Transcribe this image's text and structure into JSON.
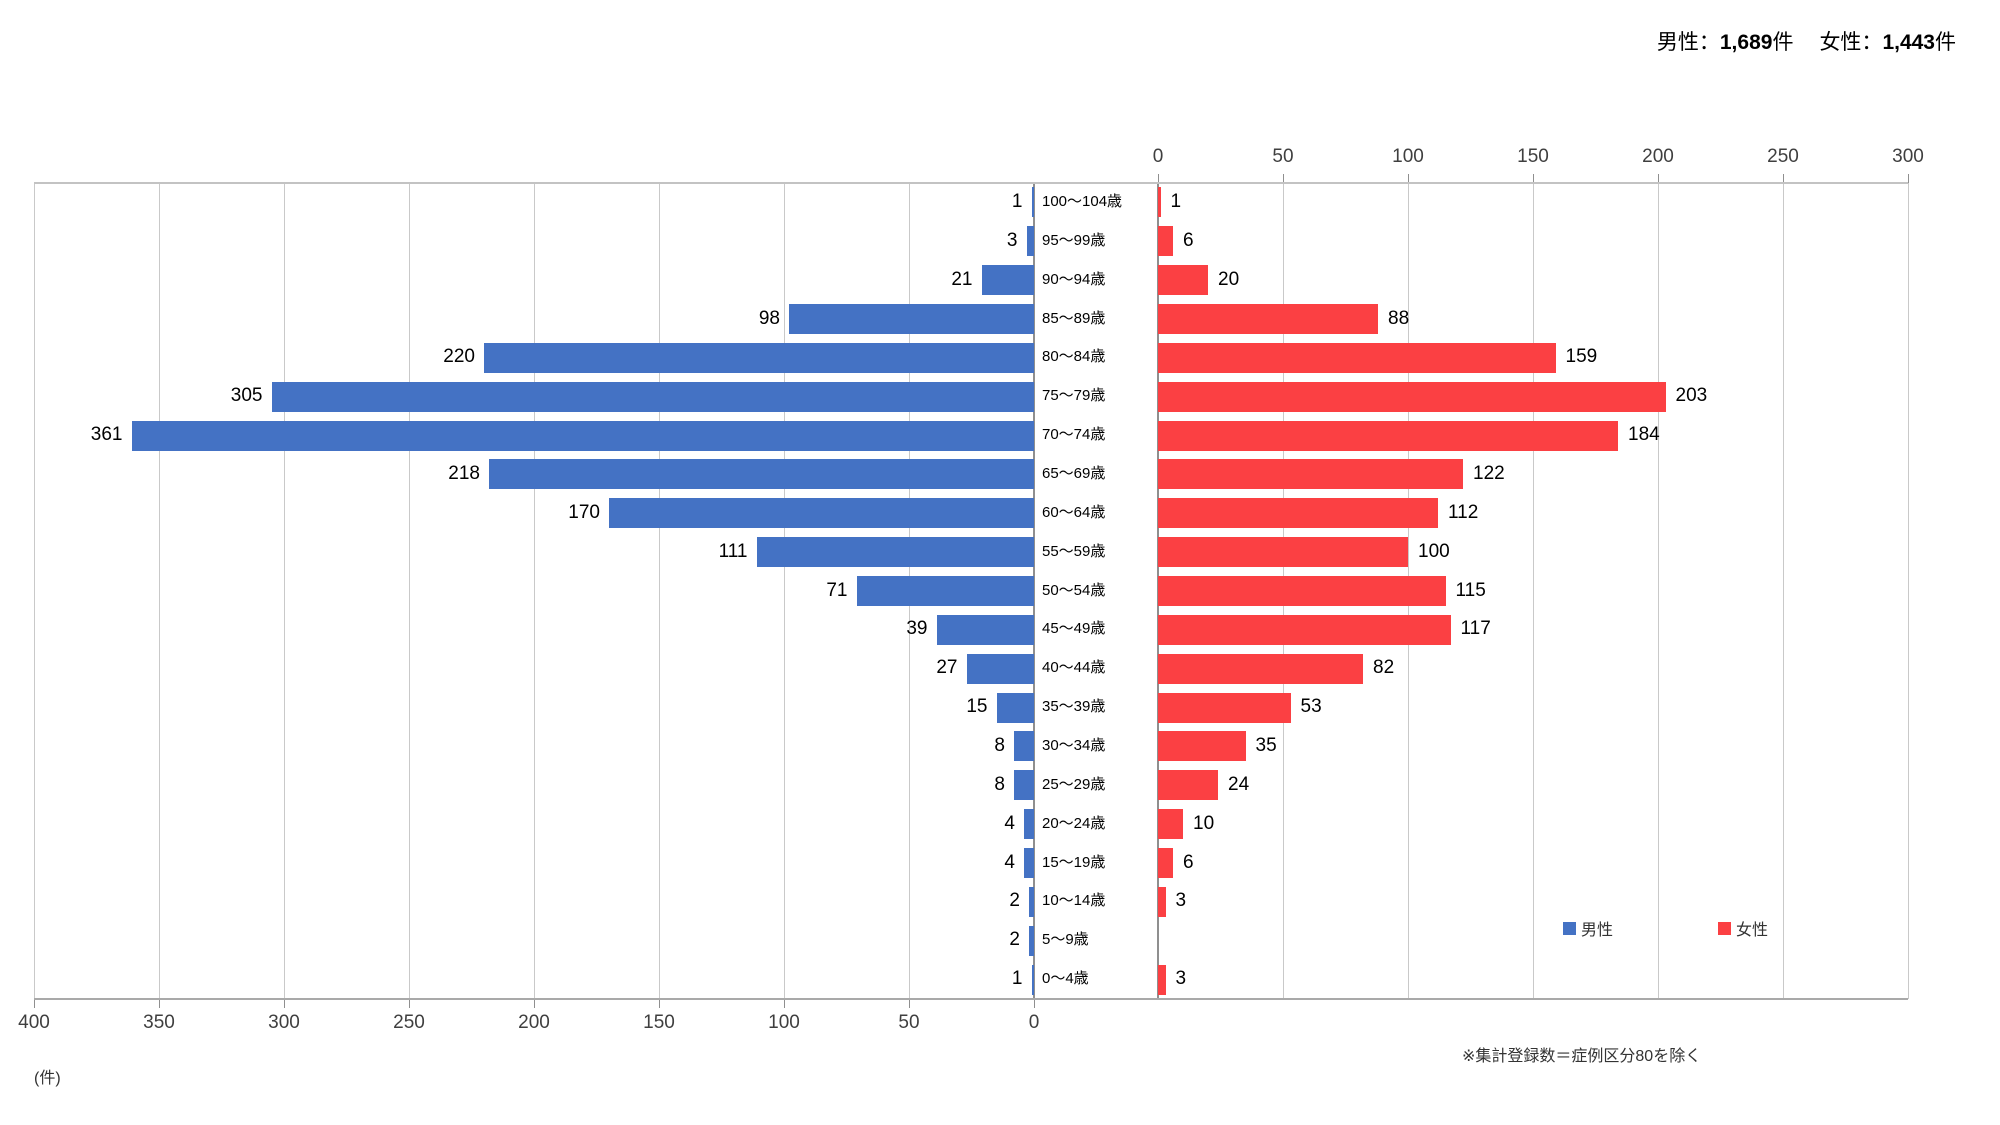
{
  "header": {
    "male_label": "男性：",
    "male_value": "1,689",
    "male_unit": "件",
    "female_label": "女性：",
    "female_value": "1,443",
    "female_unit": "件"
  },
  "chart_data": {
    "type": "bar",
    "subtype": "population_pyramid",
    "orientation": "horizontal",
    "title": "男性：1,689件　女性：1,443件",
    "categories": [
      "100～104歳",
      "95～99歳",
      "90～94歳",
      "85～89歳",
      "80～84歳",
      "75～79歳",
      "70～74歳",
      "65～69歳",
      "60～64歳",
      "55～59歳",
      "50～54歳",
      "45～49歳",
      "40～44歳",
      "35～39歳",
      "30～34歳",
      "25～29歳",
      "20～24歳",
      "15～19歳",
      "10～14歳",
      "5～9歳",
      "0～4歳"
    ],
    "series": [
      {
        "name": "男性",
        "side": "left",
        "color": "#4472C4",
        "values": [
          1,
          3,
          21,
          98,
          220,
          305,
          361,
          218,
          170,
          111,
          71,
          39,
          27,
          15,
          8,
          8,
          4,
          4,
          2,
          2,
          1
        ]
      },
      {
        "name": "女性",
        "side": "right",
        "color": "#FB4043",
        "values": [
          1,
          6,
          20,
          88,
          159,
          203,
          184,
          122,
          112,
          100,
          115,
          117,
          82,
          53,
          35,
          24,
          10,
          6,
          3,
          0,
          3
        ]
      }
    ],
    "left_axis": {
      "ticks": [
        400,
        350,
        300,
        250,
        200,
        150,
        100,
        50,
        0
      ],
      "max": 400,
      "labels_position": "bottom"
    },
    "right_axis": {
      "ticks": [
        0,
        50,
        100,
        150,
        200,
        250,
        300
      ],
      "max": 300,
      "labels_position": "top"
    },
    "grid": true,
    "data_labels": true,
    "unit_label": "(件)",
    "footnote": "※集計登録数＝症例区分80を除く",
    "legend": {
      "position": "inside-right",
      "items": [
        {
          "label": "男性",
          "color": "#4472C4"
        },
        {
          "label": "女性",
          "color": "#FB4043"
        }
      ]
    }
  }
}
